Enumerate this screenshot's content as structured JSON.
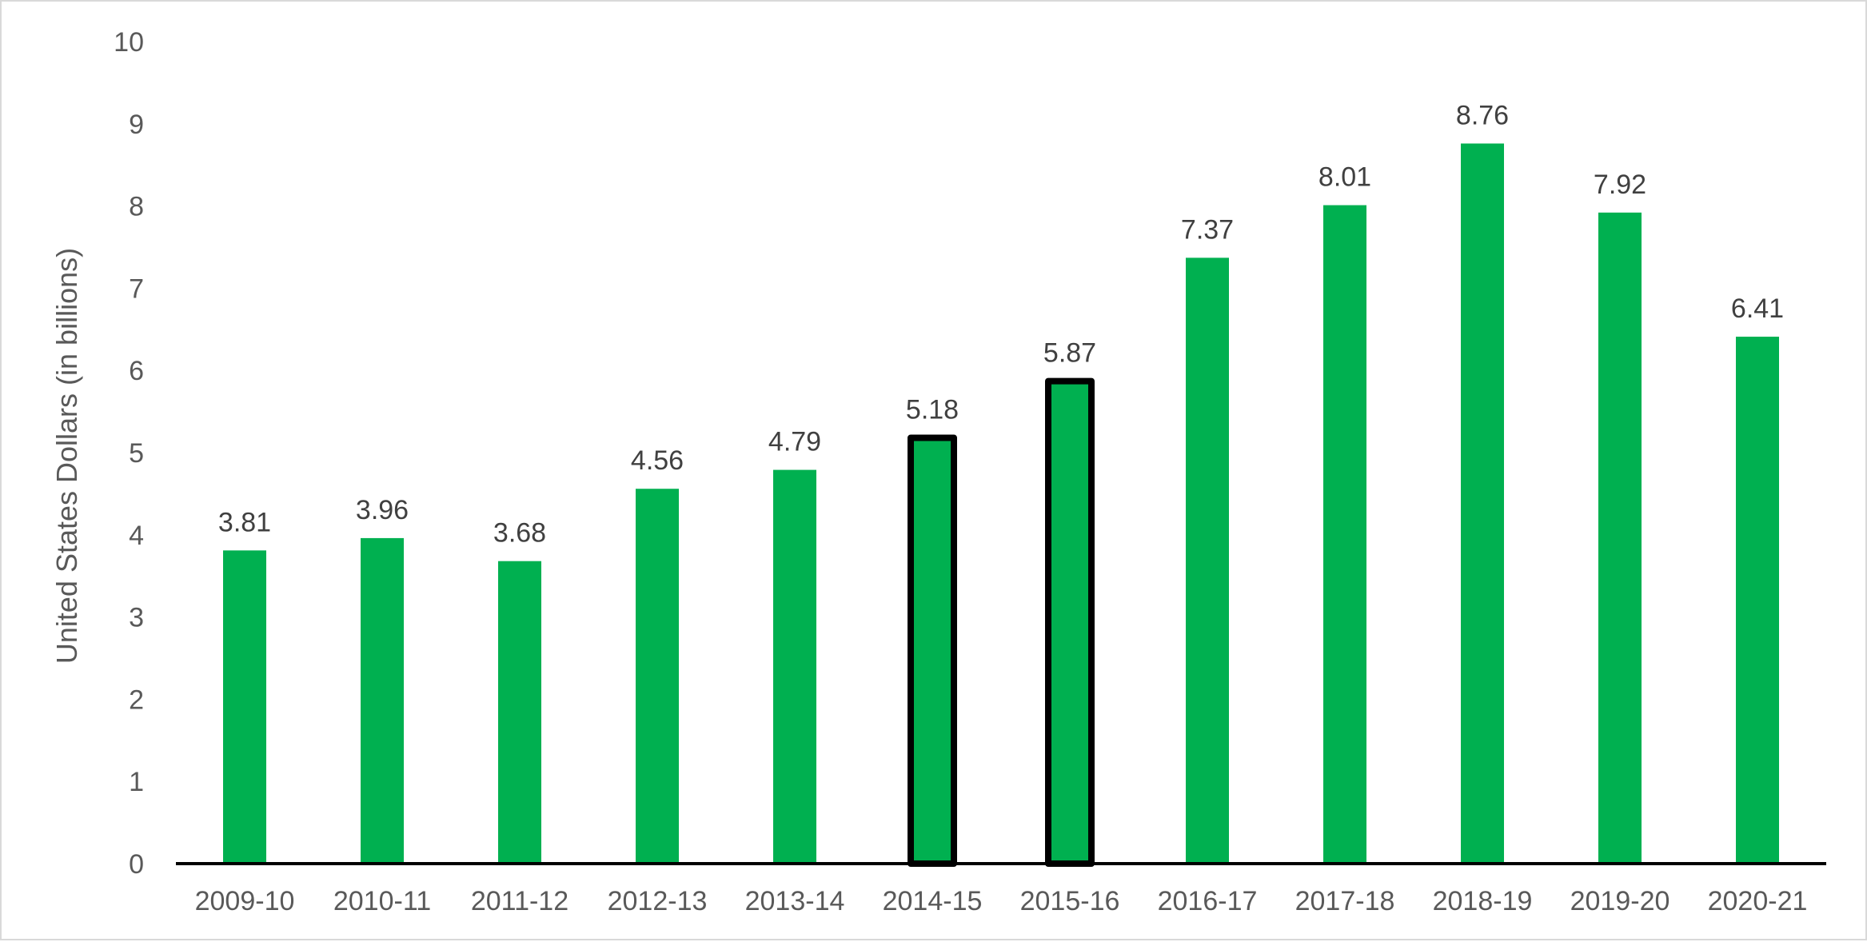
{
  "chart_data": {
    "type": "bar",
    "title": "",
    "xlabel": "",
    "ylabel": "United States Dollars (in billions)",
    "categories": [
      "2009-10",
      "2010-11",
      "2011-12",
      "2012-13",
      "2013-14",
      "2014-15",
      "2015-16",
      "2016-17",
      "2017-18",
      "2018-19",
      "2019-20",
      "2020-21"
    ],
    "values": [
      3.81,
      3.96,
      3.68,
      4.56,
      4.79,
      5.18,
      5.87,
      7.37,
      8.01,
      8.76,
      7.92,
      6.41
    ],
    "data_labels": [
      "3.81",
      "3.96",
      "3.68",
      "4.56",
      "4.79",
      "5.18",
      "5.87",
      "7.37",
      "8.01",
      "8.76",
      "7.92",
      "6.41"
    ],
    "highlighted": [
      "2014-15",
      "2015-16"
    ],
    "ylim": [
      0,
      10
    ],
    "yticks": [
      0,
      1,
      2,
      3,
      4,
      5,
      6,
      7,
      8,
      9,
      10
    ],
    "grid": false,
    "legend": "none",
    "colors": {
      "bar": "#00b050",
      "highlight_outline": "#000000",
      "axis": "#000000",
      "frame": "#d9d9d9"
    }
  }
}
